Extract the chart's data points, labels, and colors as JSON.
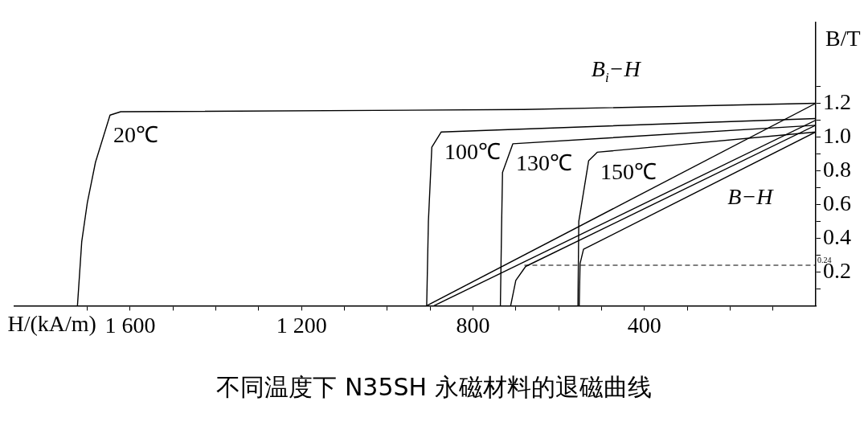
{
  "chart_data": {
    "type": "line",
    "title": "不同温度下 N35SH 永磁材料的退磁曲线",
    "xlabel": "H/(kA/m)",
    "ylabel": "B/T",
    "xlim": [
      1870,
      0
    ],
    "ylim": [
      0,
      1.68
    ],
    "xticks": [
      {
        "value": 100,
        "label": null
      },
      {
        "value": 200,
        "label": null
      },
      {
        "value": 300,
        "label": null
      },
      400,
      {
        "value": 500,
        "label": null
      },
      {
        "value": 600,
        "label": null
      },
      {
        "value": 700,
        "label": null
      },
      800,
      {
        "value": 900,
        "label": null
      },
      {
        "value": 1000,
        "label": null
      },
      {
        "value": 1100,
        "label": null
      },
      {
        "value": 1200,
        "label": "1 200"
      },
      {
        "value": 1300,
        "label": null
      },
      {
        "value": 1400,
        "label": null
      },
      {
        "value": 1500,
        "label": null
      },
      {
        "value": 1600,
        "label": "1 600"
      },
      {
        "value": 1700,
        "label": null
      }
    ],
    "yticks": [
      {
        "value": 0.1,
        "label": null
      },
      0.2,
      {
        "value": 0.3,
        "label": null
      },
      0.4,
      {
        "value": 0.5,
        "label": null
      },
      0.6,
      {
        "value": 0.7,
        "label": null
      },
      0.8,
      {
        "value": 0.9,
        "label": null
      },
      {
        "value": 1.0,
        "label": "1.0"
      },
      {
        "value": 1.1,
        "label": null
      },
      1.2,
      {
        "value": 1.3,
        "label": null
      }
    ],
    "grid": false,
    "legend": false,
    "marker": "none",
    "line_style": "solid",
    "series": [
      {
        "type": "line",
        "name": "20℃",
        "color": "#000000",
        "x": [
          1723,
          1713,
          1700,
          1681,
          1647,
          1622,
          682,
          0
        ],
        "values": [
          0,
          0.38,
          0.61,
          0.85,
          1.13,
          1.15,
          1.163,
          1.2
        ]
      },
      {
        "type": "line",
        "name": "100℃",
        "color": "#000000",
        "x": [
          908,
          904,
          896,
          874,
          0
        ],
        "values": [
          0,
          0.5,
          0.94,
          1.03,
          1.11
        ]
      },
      {
        "type": "line",
        "name": "130℃",
        "color": "#000000",
        "x": [
          736,
          733,
          731,
          707,
          0
        ],
        "values": [
          0,
          0.5,
          0.79,
          0.96,
          1.07
        ]
      },
      {
        "type": "line",
        "name": "150℃",
        "color": "#000000",
        "x": [
          555,
          553,
          530,
          510,
          0
        ],
        "values": [
          0,
          0.5,
          0.86,
          0.91,
          1.03
        ]
      },
      {
        "type": "line",
        "color": "#000000",
        "x": [
          908,
          0
        ],
        "values": [
          0,
          1.2
        ]
      },
      {
        "type": "line",
        "color": "#000000",
        "x": [
          891,
          0
        ],
        "values": [
          0,
          1.1
        ]
      },
      {
        "type": "line",
        "color": "#000000",
        "x": [
          712,
          700,
          677,
          0
        ],
        "values": [
          0,
          0.15,
          0.233,
          1.07
        ]
      },
      {
        "type": "line",
        "color": "#000000",
        "x": [
          552,
          550,
          542,
          0
        ],
        "values": [
          0,
          0.25,
          0.335,
          1.03
        ]
      }
    ],
    "ref_lines": [
      {
        "axis": "y",
        "value": 0.24,
        "label": "0.24",
        "line_style": "dashed",
        "color": "#000000"
      }
    ],
    "annotations": [
      "B$_{i}$−H",
      "B−H"
    ]
  }
}
